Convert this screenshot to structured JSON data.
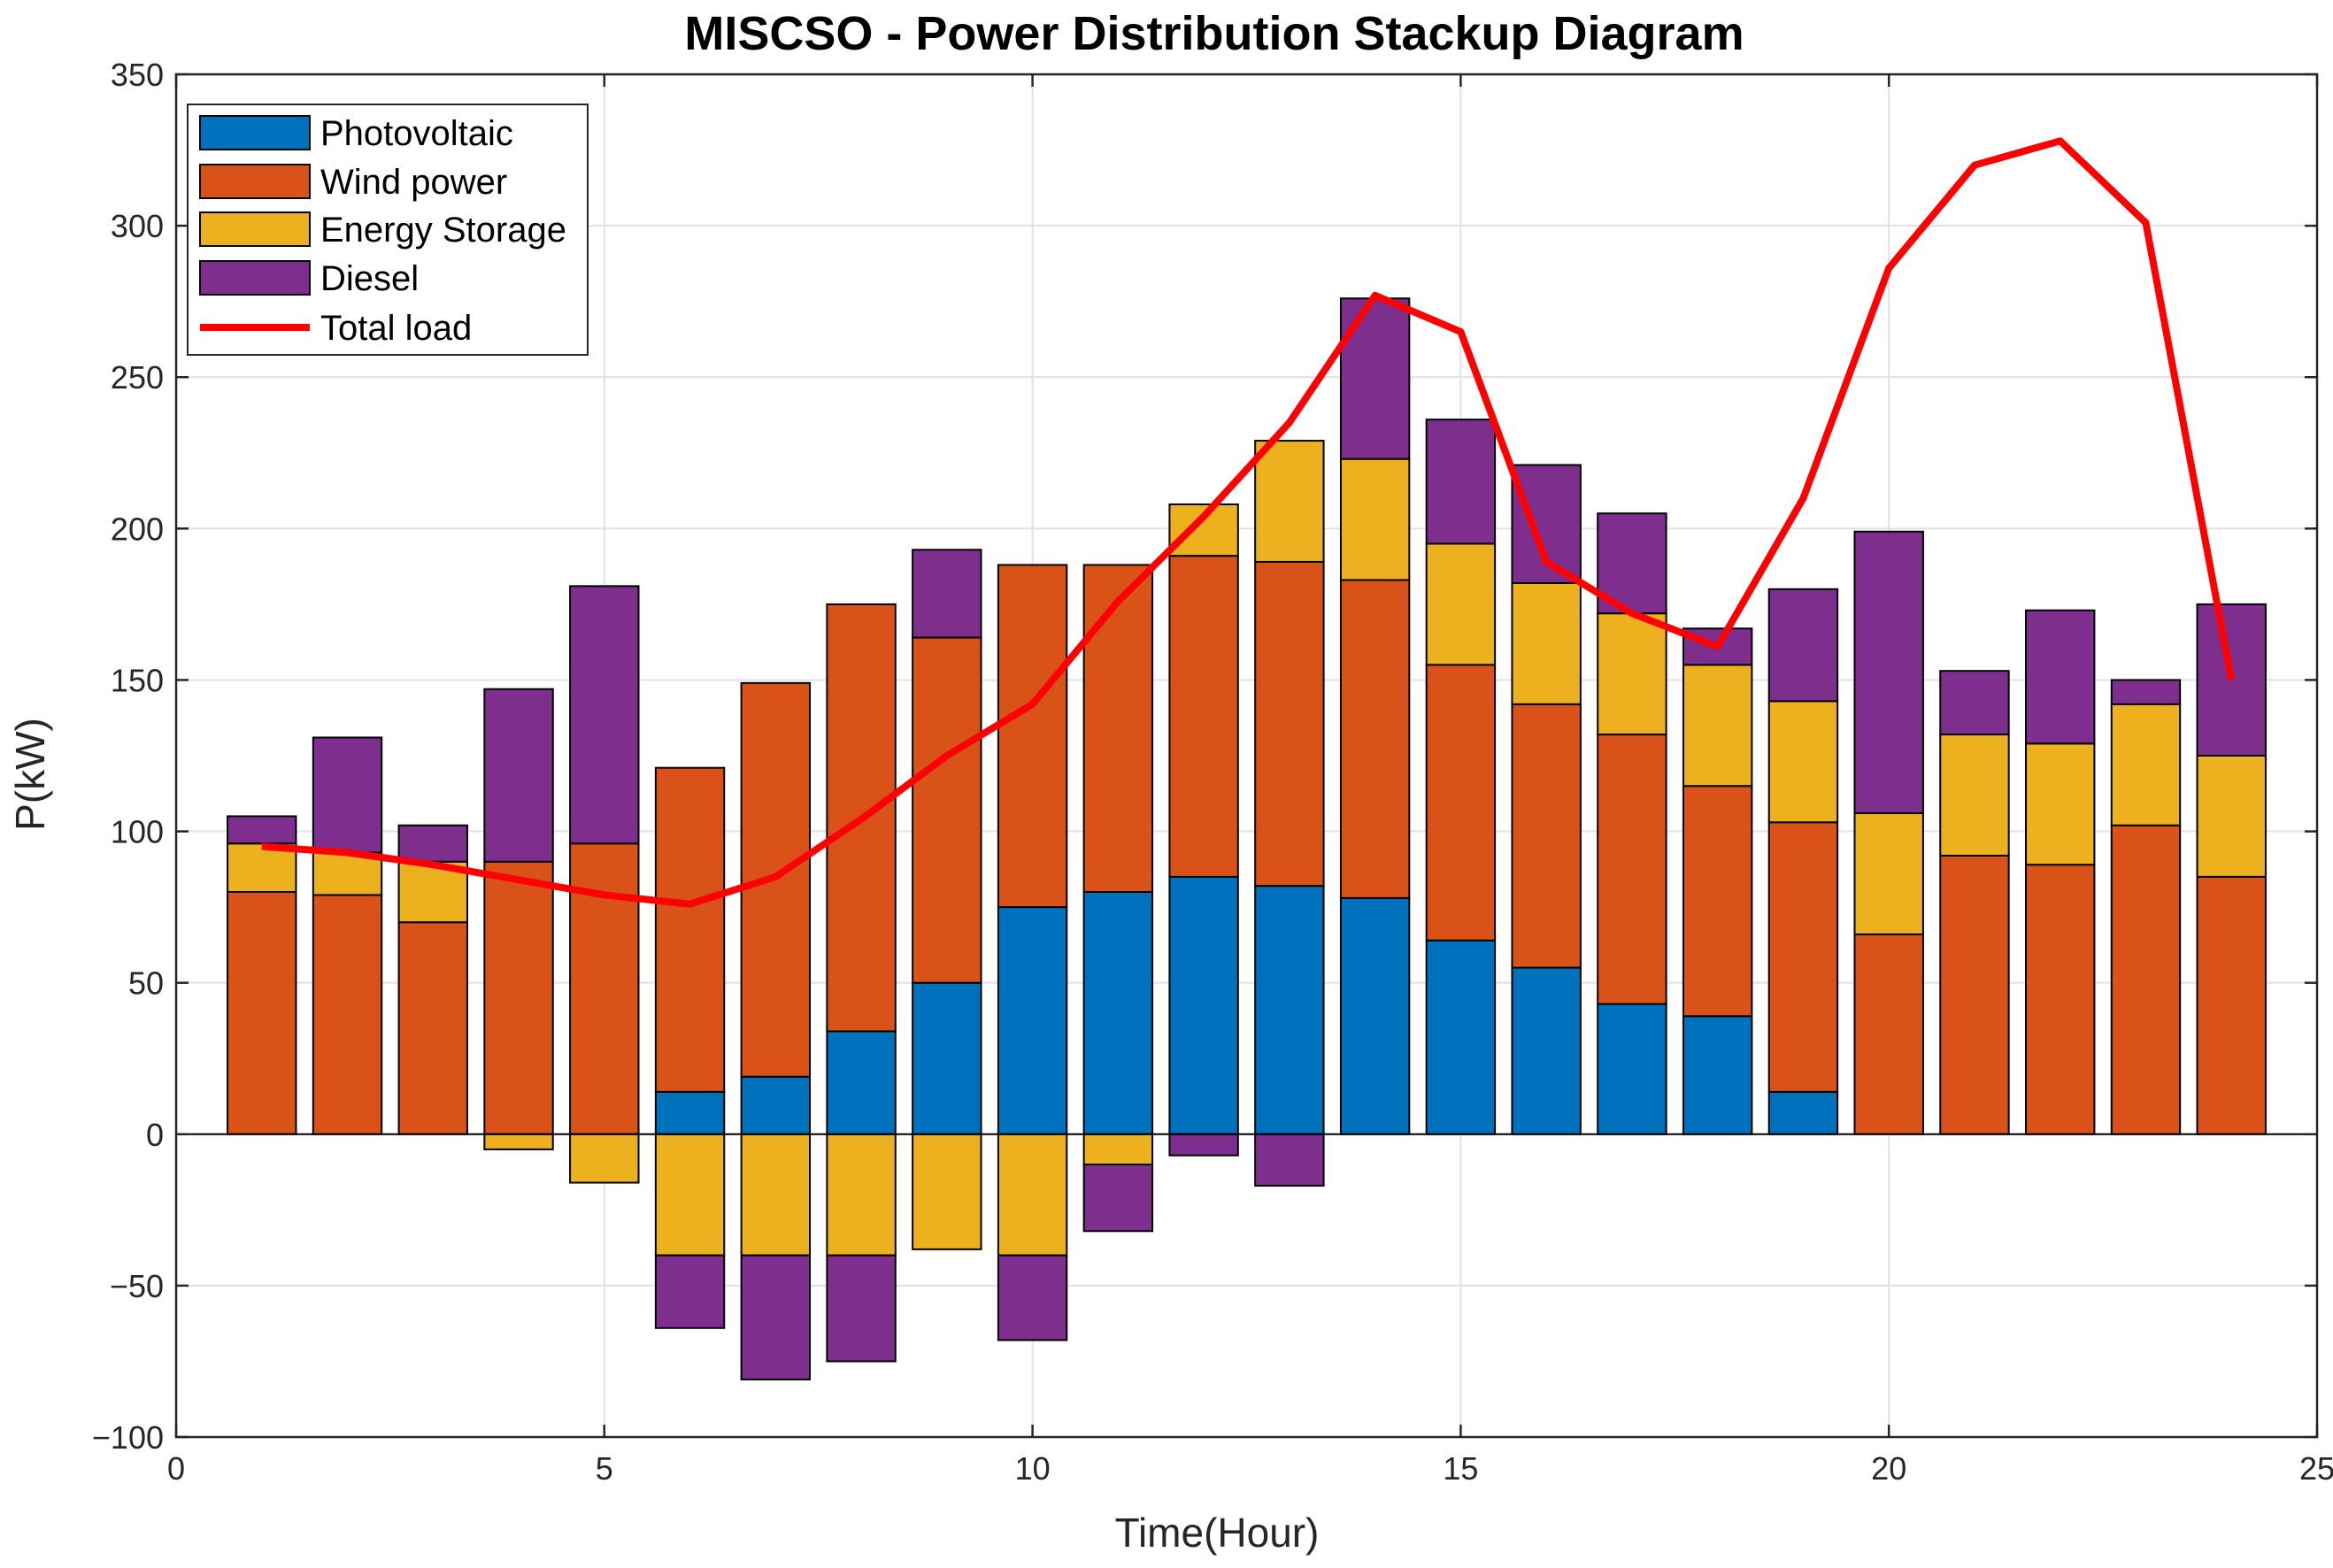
{
  "chart_data": {
    "type": "bar",
    "stacked": true,
    "title": "MISCSO - Power Distribution Stackup Diagram",
    "xlabel": "Time(Hour)",
    "ylabel": "P(kW)",
    "xlim": [
      0,
      25
    ],
    "ylim": [
      -100,
      350
    ],
    "xticks": [
      0,
      5,
      10,
      15,
      20,
      25
    ],
    "yticks": [
      -100,
      -50,
      0,
      50,
      100,
      150,
      200,
      250,
      300,
      350
    ],
    "grid": true,
    "legend_position": "top-left",
    "x": [
      1,
      2,
      3,
      4,
      5,
      6,
      7,
      8,
      9,
      10,
      11,
      12,
      13,
      14,
      15,
      16,
      17,
      18,
      19,
      20,
      21,
      22,
      23,
      24
    ],
    "series": [
      {
        "name": "Photovoltaic",
        "color": "#0072BD",
        "values": [
          0,
          0,
          0,
          0,
          0,
          14,
          19,
          34,
          50,
          75,
          80,
          85,
          82,
          78,
          64,
          55,
          43,
          39,
          14,
          0,
          0,
          0,
          0,
          0
        ]
      },
      {
        "name": "Wind power",
        "color": "#D95319",
        "values": [
          80,
          79,
          70,
          90,
          96,
          107,
          130,
          141,
          114,
          113,
          108,
          106,
          107,
          105,
          91,
          87,
          89,
          76,
          89,
          66,
          92,
          89,
          102,
          85
        ]
      },
      {
        "name": "Energy Storage",
        "color": "#EDB120",
        "values": [
          16,
          14,
          20,
          -5,
          -16,
          -40,
          -40,
          -40,
          -38,
          -40,
          -10,
          17,
          40,
          40,
          40,
          40,
          40,
          40,
          40,
          40,
          40,
          40,
          40,
          40
        ]
      },
      {
        "name": "Diesel",
        "color": "#7E2F8E",
        "values": [
          9,
          38,
          12,
          57,
          85,
          -24,
          -41,
          -35,
          29,
          -28,
          -22,
          -7,
          -17,
          53,
          41,
          39,
          33,
          12,
          37,
          93,
          21,
          44,
          8,
          50
        ]
      }
    ],
    "line": {
      "name": "Total load",
      "color": "#FF0000",
      "values": [
        95,
        93,
        89,
        84,
        79,
        76,
        85,
        104,
        125,
        142,
        176,
        204,
        235,
        277,
        265,
        189,
        172,
        161,
        210,
        286,
        320,
        328,
        301,
        150
      ]
    }
  }
}
